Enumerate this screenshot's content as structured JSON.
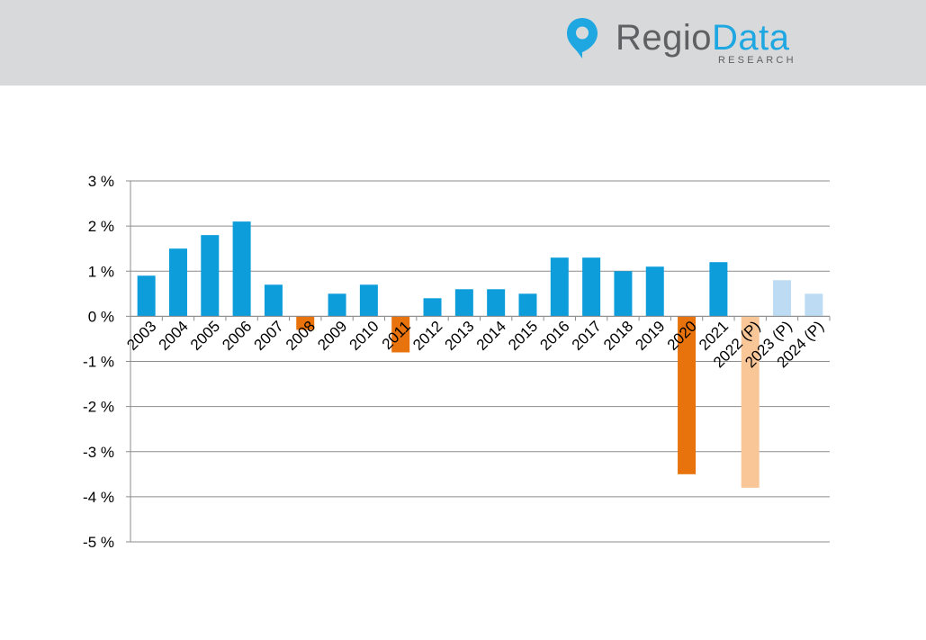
{
  "logo": {
    "brand_part1": "Regio",
    "brand_part2": "Data",
    "subtitle": "RESEARCH",
    "icon": "location-pin-icon",
    "colors": {
      "text": "#5f6064",
      "accent": "#1ea7e1"
    }
  },
  "chart_data": {
    "type": "bar",
    "categories": [
      "2003",
      "2004",
      "2005",
      "2006",
      "2007",
      "2008",
      "2009",
      "2010",
      "2011",
      "2012",
      "2013",
      "2014",
      "2015",
      "2016",
      "2017",
      "2018",
      "2019",
      "2020",
      "2021",
      "2022 (P)",
      "2023 (P)",
      "2024 (P)"
    ],
    "values": [
      0.9,
      1.5,
      1.8,
      2.1,
      0.7,
      -0.3,
      0.5,
      0.7,
      -0.8,
      0.4,
      0.6,
      0.6,
      0.5,
      1.3,
      1.3,
      1.0,
      1.1,
      -3.5,
      1.2,
      -3.8,
      0.8,
      0.5
    ],
    "projected": [
      false,
      false,
      false,
      false,
      false,
      false,
      false,
      false,
      false,
      false,
      false,
      false,
      false,
      false,
      false,
      false,
      false,
      false,
      false,
      true,
      true,
      true
    ],
    "yticks": [
      "3 %",
      "2 %",
      "1 %",
      "0 %",
      "-1 %",
      "-2 %",
      "-3 %",
      "-4 %",
      "-5 %"
    ],
    "ylim": [
      -5,
      3
    ],
    "grid": true,
    "colors": {
      "positive": "#0d9ddb",
      "negative": "#e8720c",
      "positive_projected": "#bddcf3",
      "negative_projected": "#f9c698",
      "grid": "#8c8c8c",
      "axis": "#a6a6a6"
    }
  }
}
